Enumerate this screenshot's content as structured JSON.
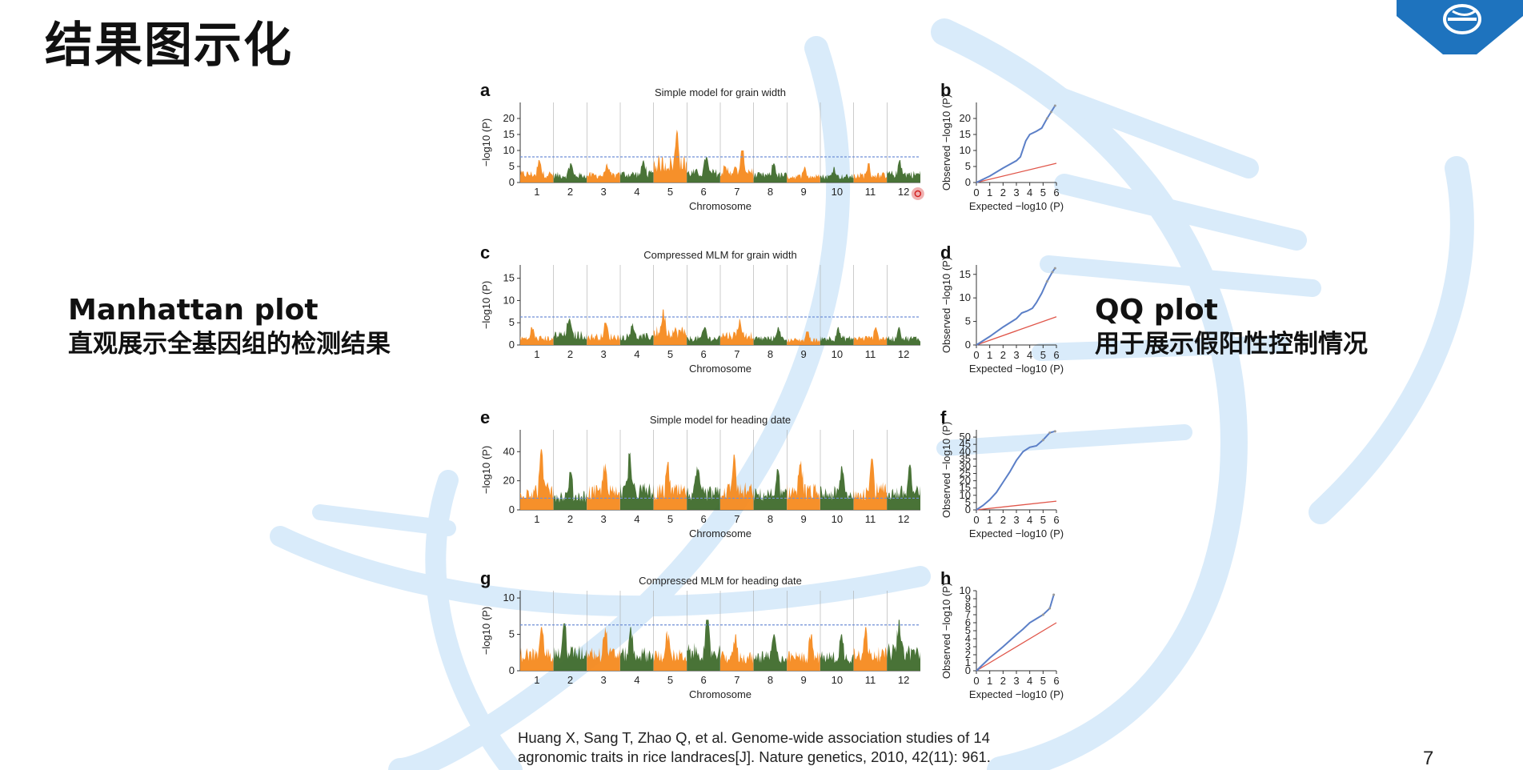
{
  "slide": {
    "title": "结果图示化",
    "page_number": "7",
    "accent_color": "#1e73be",
    "background_decoration": "dna-helix-watermark"
  },
  "manhattan_block": {
    "heading": "Manhattan plot",
    "subtitle": "直观展示全基因组的检测结果"
  },
  "qq_block": {
    "heading": "QQ plot",
    "subtitle": "用于展示假阳性控制情况"
  },
  "citation": {
    "line1": "Huang X, Sang T, Zhao Q, et al. Genome-wide association studies of 14",
    "line2": "agronomic traits in rice landraces[J]. Nature genetics, 2010, 42(11): 961."
  },
  "colors": {
    "orange": "#f58a1f",
    "green": "#3f6b2c",
    "threshold": "#6f8fd6",
    "qq_observed": "#5b7fc7",
    "qq_expected": "#e0564a",
    "cursor": "#d32020"
  },
  "chart_data": [
    {
      "type": "scatter",
      "panel": "a",
      "title": "Simple model for grain width",
      "xlabel": "Chromosome",
      "ylabel": "−log10 (P)",
      "categories": [
        "1",
        "2",
        "3",
        "4",
        "5",
        "6",
        "7",
        "8",
        "9",
        "10",
        "11",
        "12"
      ],
      "yticks": [
        0,
        5,
        10,
        15,
        20
      ],
      "ylim": [
        0,
        25
      ],
      "threshold": 8,
      "peaks": [
        7,
        6,
        6,
        7,
        17,
        8,
        10,
        6,
        5,
        5,
        6,
        7
      ]
    },
    {
      "type": "scatter",
      "panel": "c",
      "title": "Compressed MLM for grain width",
      "xlabel": "Chromosome",
      "ylabel": "−log10 (P)",
      "categories": [
        "1",
        "2",
        "3",
        "4",
        "5",
        "6",
        "7",
        "8",
        "9",
        "10",
        "11",
        "12"
      ],
      "yticks": [
        0,
        5,
        10,
        15
      ],
      "ylim": [
        0,
        18
      ],
      "threshold": 6.3,
      "peaks": [
        4,
        6,
        5,
        5,
        8,
        4,
        6,
        4,
        3,
        4,
        4,
        4
      ]
    },
    {
      "type": "scatter",
      "panel": "e",
      "title": "Simple model for heading date",
      "xlabel": "Chromosome",
      "ylabel": "−log10 (P)",
      "categories": [
        "1",
        "2",
        "3",
        "4",
        "5",
        "6",
        "7",
        "8",
        "9",
        "10",
        "11",
        "12"
      ],
      "yticks": [
        0,
        20,
        40
      ],
      "ylim": [
        0,
        55
      ],
      "threshold": 8,
      "peaks": [
        42,
        26,
        32,
        46,
        33,
        30,
        38,
        28,
        34,
        30,
        36,
        31
      ]
    },
    {
      "type": "scatter",
      "panel": "g",
      "title": "Compressed MLM for heading date",
      "xlabel": "Chromosome",
      "ylabel": "−log10 (P)",
      "categories": [
        "1",
        "2",
        "3",
        "4",
        "5",
        "6",
        "7",
        "8",
        "9",
        "10",
        "11",
        "12"
      ],
      "yticks": [
        0,
        5,
        10
      ],
      "ylim": [
        0,
        11
      ],
      "threshold": 6.3,
      "peaks": [
        6,
        6.5,
        6,
        6,
        5.5,
        7,
        5,
        5,
        5,
        5,
        6,
        7
      ]
    },
    {
      "type": "line",
      "panel": "b",
      "xlabel": "Expected −log10 (P)",
      "ylabel": "Observed −log10 (P)",
      "xticks": [
        0,
        1,
        2,
        3,
        4,
        5,
        6
      ],
      "yticks": [
        0,
        5,
        10,
        15,
        20
      ],
      "xlim": [
        0,
        6
      ],
      "ylim": [
        0,
        25
      ],
      "series": [
        {
          "x": [
            0,
            1,
            2,
            3,
            3.3,
            3.7,
            4,
            4.5,
            4.9,
            5.3,
            5.6,
            5.9
          ],
          "y": [
            0,
            2,
            4.5,
            6.8,
            8,
            13,
            15,
            16,
            17,
            20,
            22,
            24
          ]
        },
        {
          "x": [
            0,
            6
          ],
          "y": [
            0,
            6
          ]
        }
      ]
    },
    {
      "type": "line",
      "panel": "d",
      "xlabel": "Expected −log10 (P)",
      "ylabel": "Observed −log10 (P)",
      "xticks": [
        0,
        1,
        2,
        3,
        4,
        5,
        6
      ],
      "yticks": [
        0,
        5,
        10,
        15
      ],
      "xlim": [
        0,
        6
      ],
      "ylim": [
        0,
        17
      ],
      "series": [
        {
          "x": [
            0,
            1,
            2,
            3,
            3.4,
            3.8,
            4.2,
            4.5,
            4.9,
            5.3,
            5.7,
            5.9
          ],
          "y": [
            0,
            1.8,
            3.8,
            5.6,
            6.8,
            7.2,
            7.8,
            9,
            11,
            13.5,
            15.5,
            16.3
          ]
        },
        {
          "x": [
            0,
            6
          ],
          "y": [
            0,
            6
          ]
        }
      ]
    },
    {
      "type": "line",
      "panel": "f",
      "xlabel": "Expected −log10 (P)",
      "ylabel": "Observed −log10 (P)",
      "xticks": [
        0,
        1,
        2,
        3,
        4,
        5,
        6
      ],
      "yticks": [
        0,
        5,
        10,
        15,
        20,
        25,
        30,
        35,
        40,
        45,
        50
      ],
      "xlim": [
        0,
        6
      ],
      "ylim": [
        0,
        55
      ],
      "series": [
        {
          "x": [
            0,
            0.5,
            1,
            1.5,
            2,
            2.5,
            3,
            3.5,
            4,
            4.5,
            5,
            5.5,
            5.9
          ],
          "y": [
            0,
            3,
            7,
            12,
            19,
            26,
            34,
            40,
            43,
            44,
            48,
            53,
            54
          ]
        },
        {
          "x": [
            0,
            6
          ],
          "y": [
            0,
            6
          ]
        }
      ]
    },
    {
      "type": "line",
      "panel": "h",
      "xlabel": "Expected −log10 (P)",
      "ylabel": "Observed −log10 (P)",
      "xticks": [
        0,
        1,
        2,
        3,
        4,
        5,
        6
      ],
      "yticks": [
        0,
        1,
        2,
        3,
        4,
        5,
        6,
        7,
        8,
        9,
        10
      ],
      "xlim": [
        0,
        6
      ],
      "ylim": [
        0,
        10
      ],
      "series": [
        {
          "x": [
            0,
            1,
            2,
            3,
            3.5,
            4,
            4.5,
            5,
            5.5,
            5.8
          ],
          "y": [
            0,
            1.6,
            3,
            4.5,
            5.2,
            6,
            6.5,
            7,
            7.8,
            9.5
          ]
        },
        {
          "x": [
            0,
            6
          ],
          "y": [
            0,
            6
          ]
        }
      ]
    }
  ]
}
